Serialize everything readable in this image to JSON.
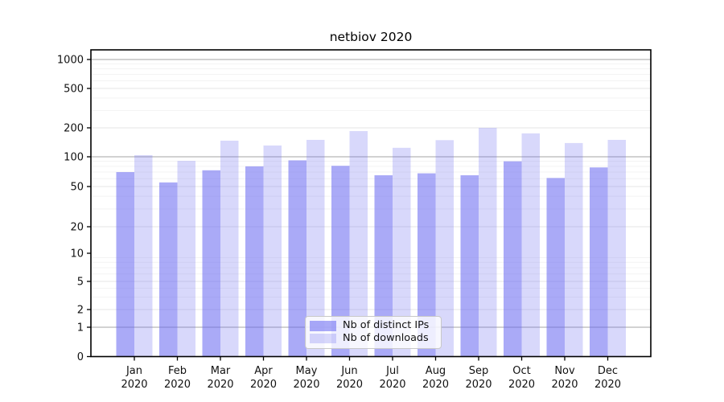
{
  "chart_data": {
    "type": "bar",
    "title": "netbiov 2020",
    "categories": [
      "Jan 2020",
      "Feb 2020",
      "Mar 2020",
      "Apr 2020",
      "May 2020",
      "Jun 2020",
      "Jul 2020",
      "Aug 2020",
      "Sep 2020",
      "Oct 2020",
      "Nov 2020",
      "Dec 2020"
    ],
    "series": [
      {
        "name": "Nb of distinct IPs",
        "color": "rgba(100,100,240,0.55)",
        "values": [
          70,
          55,
          73,
          80,
          92,
          81,
          65,
          68,
          65,
          90,
          61,
          78
        ]
      },
      {
        "name": "Nb of downloads",
        "color": "rgba(100,100,240,0.25)",
        "values": [
          104,
          91,
          147,
          131,
          150,
          185,
          124,
          149,
          200,
          175,
          139,
          150
        ]
      }
    ],
    "xlabel": "",
    "ylabel": "",
    "yscale": "pseudo-log",
    "ylim": [
      0,
      1000
    ],
    "yticks": [
      0,
      1,
      2,
      5,
      10,
      20,
      50,
      100,
      200,
      500,
      1000
    ],
    "grid": true,
    "legend_position": "inside-bottom-center",
    "colors": {
      "frame": "#000000",
      "grid_major_dark": "#b8b8b8",
      "grid_labeled": "#e6e6e6",
      "grid_minor": "#f3f3f3",
      "tick_text": "#111111"
    }
  }
}
